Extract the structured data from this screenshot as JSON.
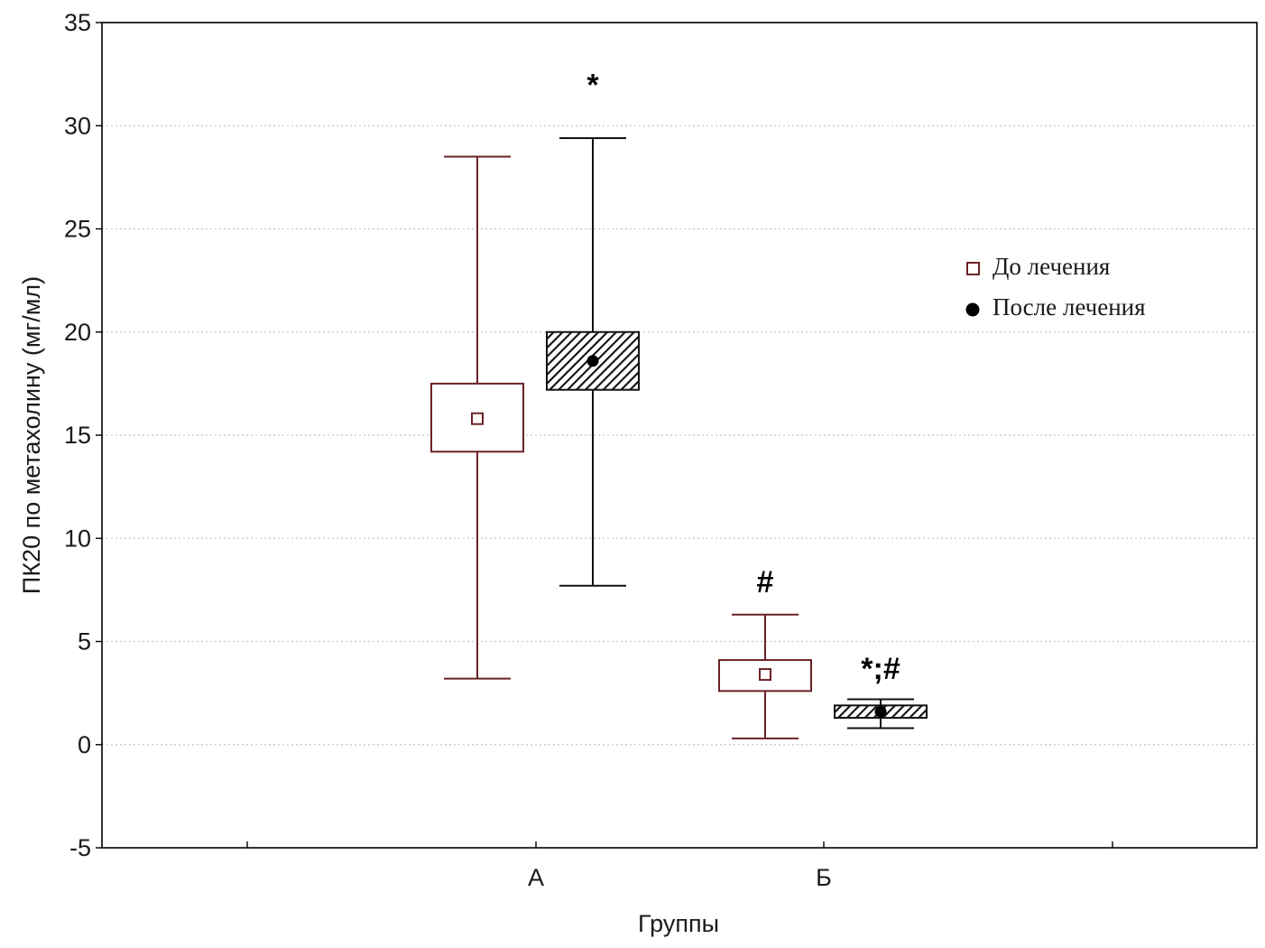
{
  "chart_data": {
    "type": "box",
    "xlabel": "Группы",
    "ylabel": "ПК20 по метахолину (мг/мл)",
    "ylim": [
      -5,
      35
    ],
    "yticks": [
      -5,
      0,
      5,
      10,
      15,
      20,
      25,
      30,
      35
    ],
    "categories": [
      "А",
      "Б"
    ],
    "grid": true,
    "legend_position": "top-right",
    "colors": {
      "before": "#6b2226",
      "after": "#111111",
      "grid": "#c8c8c8"
    },
    "series": [
      {
        "name": "До лечения",
        "marker": "open-square",
        "data": [
          {
            "category": "А",
            "mean": 15.8,
            "box": [
              14.2,
              17.5
            ],
            "whisker": [
              3.2,
              28.5
            ]
          },
          {
            "category": "Б",
            "mean": 3.4,
            "box": [
              2.6,
              4.1
            ],
            "whisker": [
              0.3,
              6.3
            ]
          }
        ]
      },
      {
        "name": "После лечения",
        "marker": "filled-circle",
        "data": [
          {
            "category": "А",
            "mean": 18.6,
            "box": [
              17.2,
              20.0
            ],
            "whisker": [
              7.7,
              29.4
            ]
          },
          {
            "category": "Б",
            "mean": 1.6,
            "box": [
              1.3,
              1.9
            ],
            "whisker": [
              0.8,
              2.2
            ]
          }
        ]
      }
    ],
    "annotations": [
      {
        "text": "*",
        "category": "А",
        "series": "После лечения",
        "y": 32.0
      },
      {
        "text": "#",
        "category": "Б",
        "series": "До лечения",
        "y": 7.9
      },
      {
        "text": "*;#",
        "category": "Б",
        "series": "После лечения",
        "y": 3.7
      }
    ]
  }
}
